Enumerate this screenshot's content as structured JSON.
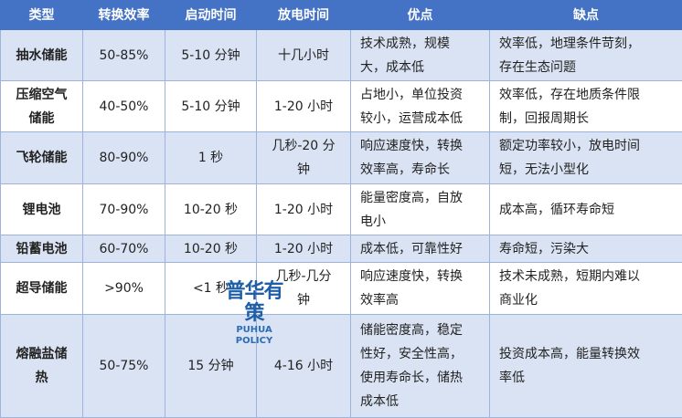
{
  "table": {
    "headers": [
      "类型",
      "转换效率",
      "启动时间",
      "放电时间",
      "优点",
      "缺点"
    ],
    "rows": [
      [
        "抽水储能",
        "50-85%",
        "5-10 分钟",
        "十几小时",
        "技术成熟，规模\n大，成本低",
        "效率低，地理条件苛刻，\n存在生态问题"
      ],
      [
        "压缩空气\n储能",
        "40-50%",
        "5-10 分钟",
        "1-20 小时",
        "占地小，单位投资\n较小，运营成本低",
        "效率低，存在地质条件限\n制，回报周期长"
      ],
      [
        "飞轮储能",
        "80-90%",
        "1 秒",
        "几秒-20 分\n钟",
        "响应速度快，转换\n效率高，寿命长",
        "额定功率较小，放电时间\n短，无法小型化"
      ],
      [
        "锂电池",
        "70-90%",
        "10-20 秒",
        "1-20 小时",
        "能量密度高，自放\n电小",
        "成本高，循环寿命短"
      ],
      [
        "铅蓄电池",
        "60-70%",
        "10-20 秒",
        "1-20 小时",
        "成本低，可靠性好",
        "寿命短，污染大"
      ],
      [
        "超导储能",
        ">90%",
        "<1 秒",
        "几秒-几分\n钟",
        "响应速度快，转换\n效率高",
        "技术未成熟，短期内难以\n商业化"
      ],
      [
        "熔融盐储\n热",
        "50-75%",
        "15 分钟",
        "4-16 小时",
        "储能密度高，稳定\n性好，安全性高，\n使用寿命长，储热\n成本低",
        "投资成本高，能量转换效\n率低"
      ]
    ]
  },
  "watermark": {
    "cn": "普华有策",
    "en": "PUHUA POLICY"
  },
  "colors": {
    "header": "#4472c4",
    "alt_row": "#dae3f3",
    "border": "#9db3db"
  }
}
